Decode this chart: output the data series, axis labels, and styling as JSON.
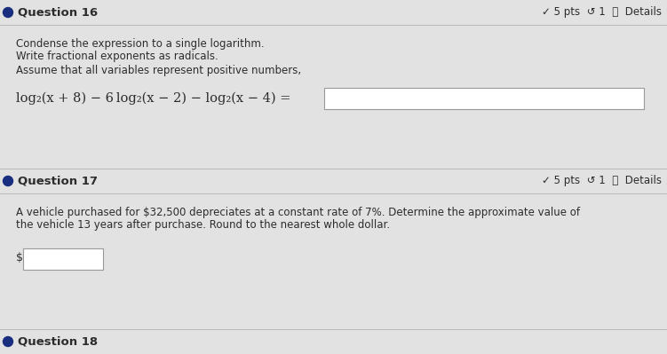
{
  "bg_color": "#d0d0d0",
  "section_bg": "#e2e2e2",
  "white": "#ffffff",
  "dark_text": "#2c2c2c",
  "blue_dot": "#1a2e80",
  "sep_color": "#b8b8b8",
  "q16_header": "Question 16",
  "q16_pts": "✓ 5 pts  ↺ 1  ⓘ  Details",
  "q16_line1": "Condense the expression to a single logarithm.",
  "q16_line2": "Write fractional exponents as radicals.",
  "q16_line3": "Assume that all variables represent positive numbers,",
  "q16_math": "log₂(x + 8) − 6 log₂(x − 2) − log₂(x − 4) =",
  "q17_header": "Question 17",
  "q17_pts": "✓ 5 pts  ↺ 1  ⓘ  Details",
  "q17_line1": "A vehicle purchased for $32,500 depreciates at a constant rate of 7%. Determine the approximate value of",
  "q17_line2": "the vehicle 13 years after purchase. Round to the nearest whole dollar.",
  "q17_dollar": "$",
  "q18_header": "Question 18",
  "figw": 7.51,
  "figh": 3.99,
  "dpi": 100
}
